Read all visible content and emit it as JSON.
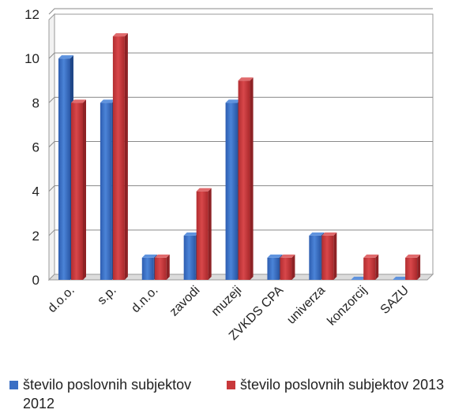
{
  "chart_data": {
    "type": "bar",
    "categories": [
      "d.o.o.",
      "s.p.",
      "d.n.o.",
      "zavodi",
      "muzeji",
      "ZVKDS CPA",
      "univerza",
      "konzorcij",
      "SAZU"
    ],
    "series": [
      {
        "name": "število poslovnih subjektov 2012",
        "values": [
          10,
          8,
          1,
          2,
          8,
          1,
          2,
          0,
          0
        ],
        "color": "#3b6fc4"
      },
      {
        "name": "število poslovnih subjektov 2013",
        "values": [
          8,
          11,
          1,
          4,
          9,
          1,
          2,
          1,
          1
        ],
        "color": "#c8383b"
      }
    ],
    "yticks": [
      "0",
      "2",
      "4",
      "6",
      "8",
      "10",
      "12"
    ],
    "ylim": [
      0,
      12
    ],
    "grid": true,
    "legend_position": "bottom",
    "style": "3d-clustered-columns"
  }
}
